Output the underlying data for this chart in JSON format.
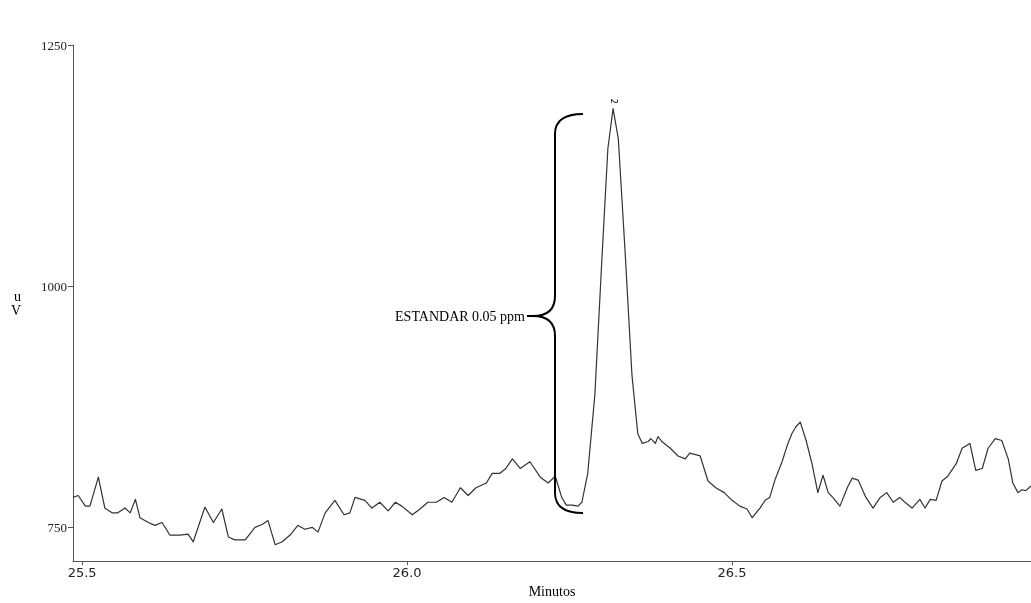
{
  "chart_data": {
    "type": "line",
    "xlabel": "Minutos",
    "ylabel": "uV",
    "xlim": [
      25.486,
      26.96
    ],
    "xticks": [
      25.5,
      {
        "value": 26,
        "label": "26.0"
      },
      26.5
    ],
    "ylim": [
      715,
      1250
    ],
    "yticks": [
      750,
      1000,
      1250
    ],
    "grid": false,
    "marker": "none",
    "line_style": "solid",
    "annotations": [
      "ESTANDAR 0.05 ppm",
      {
        "text": "2",
        "x": 26.317,
        "y": 1184
      }
    ],
    "series": [
      {
        "color": "#333333",
        "x": [
          25.486,
          25.494,
          25.505,
          25.512,
          25.525,
          25.535,
          25.546,
          25.555,
          25.566,
          25.574,
          25.582,
          25.589,
          25.602,
          25.612,
          25.623,
          25.635,
          25.651,
          25.663,
          25.671,
          25.689,
          25.702,
          25.715,
          25.725,
          25.735,
          25.751,
          25.766,
          25.777,
          25.786,
          25.797,
          25.808,
          25.82,
          25.832,
          25.843,
          25.854,
          25.863,
          25.874,
          25.889,
          25.903,
          25.912,
          25.92,
          25.935,
          25.946,
          25.958,
          25.971,
          25.982,
          25.992,
          26.008,
          26.02,
          26.032,
          26.045,
          26.057,
          26.069,
          26.082,
          26.094,
          26.106,
          26.122,
          26.131,
          26.143,
          26.152,
          26.162,
          26.174,
          26.189,
          26.205,
          26.217,
          26.228,
          26.238,
          26.245,
          26.254,
          26.263,
          26.269,
          26.278,
          26.289,
          26.3,
          26.309,
          26.317,
          26.325,
          26.335,
          26.346,
          26.355,
          26.362,
          26.371,
          26.375,
          26.382,
          26.386,
          26.392,
          26.405,
          26.417,
          26.428,
          26.435,
          26.451,
          26.463,
          26.475,
          26.488,
          26.5,
          26.512,
          26.523,
          26.531,
          26.543,
          26.551,
          26.558,
          26.566,
          26.577,
          26.586,
          26.592,
          26.598,
          26.605,
          26.614,
          26.623,
          26.632,
          26.64,
          26.648,
          26.655,
          26.666,
          26.678,
          26.685,
          26.694,
          26.706,
          26.717,
          26.728,
          26.738,
          26.748,
          26.758,
          26.766,
          26.777,
          26.789,
          26.797,
          26.805,
          26.814,
          26.823,
          26.832,
          26.845,
          26.854,
          26.866,
          26.875,
          26.885,
          26.894,
          26.905,
          26.915,
          26.925,
          26.932,
          26.94,
          26.946,
          26.952,
          26.96
        ],
        "values": [
          781,
          783,
          772,
          772,
          802,
          770,
          765,
          765,
          770,
          765,
          779,
          760,
          755,
          752,
          755,
          742,
          742,
          743,
          735,
          771,
          755,
          769,
          740,
          737,
          737,
          750,
          753,
          757,
          732,
          735,
          742,
          752,
          748,
          750,
          745,
          765,
          778,
          763,
          765,
          781,
          778,
          770,
          776,
          767,
          776,
          772,
          763,
          769,
          776,
          776,
          781,
          776,
          791,
          783,
          791,
          796,
          806,
          806,
          811,
          821,
          811,
          818,
          802,
          796,
          803,
          781,
          773,
          773,
          772,
          776,
          806,
          888,
          1031,
          1143,
          1184,
          1153,
          1041,
          908,
          847,
          837,
          839,
          842,
          837,
          844,
          839,
          832,
          824,
          821,
          827,
          824,
          798,
          791,
          786,
          778,
          772,
          769,
          760,
          770,
          778,
          781,
          799,
          818,
          837,
          847,
          854,
          859,
          840,
          816,
          786,
          804,
          786,
          781,
          772,
          792,
          801,
          799,
          781,
          770,
          781,
          786,
          776,
          781,
          776,
          770,
          779,
          770,
          779,
          778,
          798,
          803,
          816,
          832,
          837,
          809,
          811,
          832,
          842,
          840,
          821,
          796,
          786,
          789,
          788,
          793
        ]
      }
    ]
  }
}
